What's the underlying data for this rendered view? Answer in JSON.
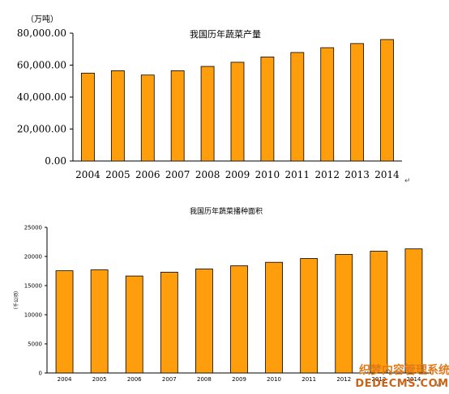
{
  "style": {
    "bar_fill": "#ff9e0d",
    "bar_stroke": "#000000"
  },
  "chart_data": [
    {
      "type": "bar",
      "title": "我国历年蔬菜产量",
      "ylabel": "（万吨）",
      "categories": [
        "2004",
        "2005",
        "2006",
        "2007",
        "2008",
        "2009",
        "2010",
        "2011",
        "2012",
        "2013",
        "2014"
      ],
      "values": [
        55000,
        56500,
        53800,
        56500,
        59200,
        61800,
        65100,
        67900,
        70900,
        73500,
        76000
      ],
      "ylim": [
        0,
        80000
      ],
      "yticks": [
        "0.00",
        "20,000.00",
        "40,000.00",
        "60,000.00",
        "80,000.00"
      ],
      "grid": false,
      "legend": "none"
    },
    {
      "type": "bar",
      "title": "我国历年蔬菜播种面积",
      "ylabel": "（千公顷）",
      "categories": [
        "2004",
        "2005",
        "2006",
        "2007",
        "2008",
        "2009",
        "2010",
        "2011",
        "2012",
        "2013",
        "2014"
      ],
      "values": [
        17550,
        17700,
        16650,
        17300,
        17850,
        18400,
        19000,
        19650,
        20350,
        20900,
        21300
      ],
      "ylim": [
        0,
        25000
      ],
      "yticks": [
        "0",
        "5000",
        "10000",
        "15000",
        "20000",
        "25000"
      ],
      "grid": false,
      "legend": "none"
    }
  ],
  "return_mark": "↵",
  "watermark": {
    "line1": "织梦内容管理系统",
    "line2": "DEDECMS.COM"
  }
}
